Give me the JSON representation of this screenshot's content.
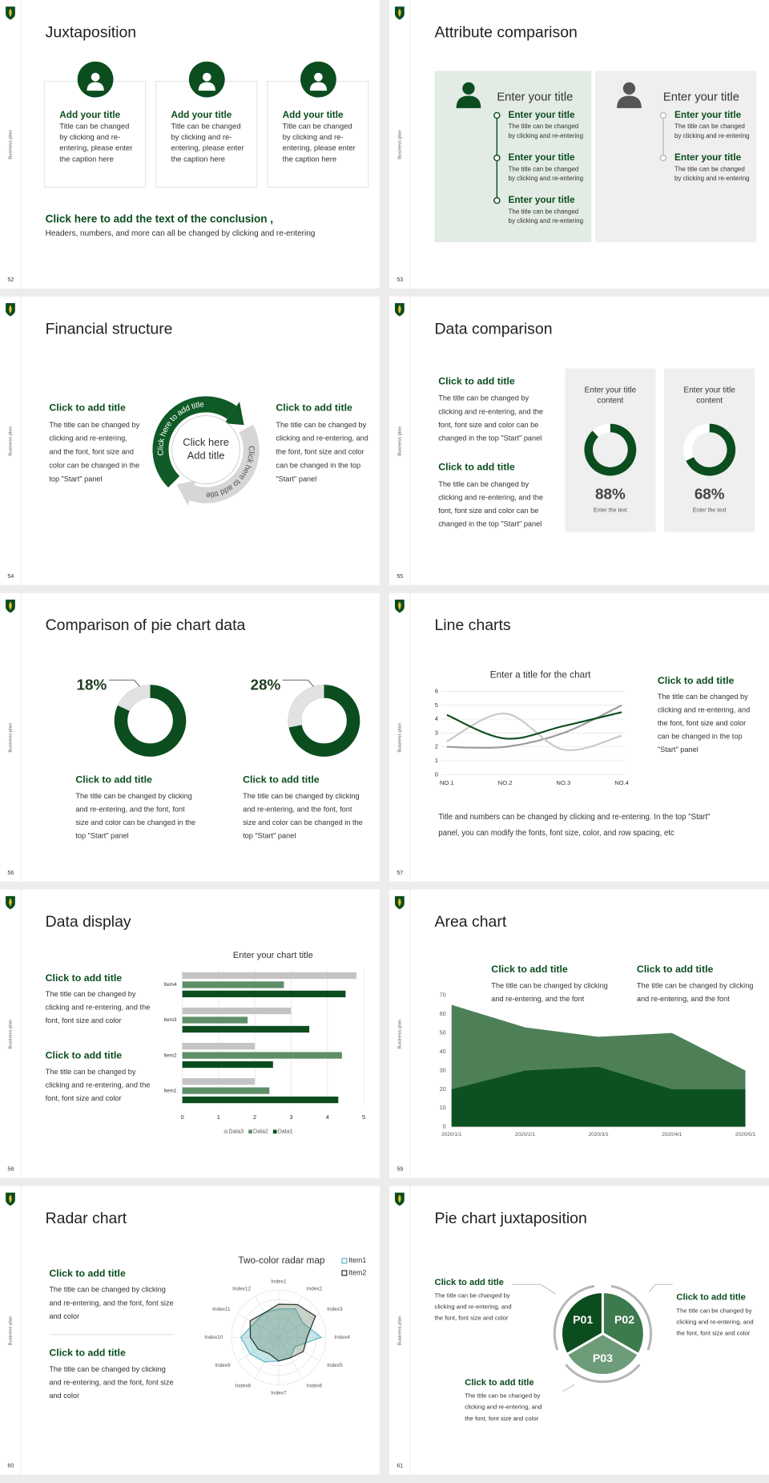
{
  "sidebar_label": "Business plan",
  "slides": [
    {
      "number": "52",
      "title": "Juxtaposition",
      "cards": [
        {
          "title": "Add your title",
          "text": [
            "Title can be changed",
            "by clicking and re-",
            "entering, please enter",
            "the caption here"
          ]
        },
        {
          "title": "Add your title",
          "text": [
            "Title can be changed",
            "by clicking and re-",
            "entering, please enter",
            "the caption here"
          ]
        },
        {
          "title": "Add your title",
          "text": [
            "Title can be changed",
            "by clicking and re-",
            "entering, please enter",
            "the caption here"
          ]
        }
      ],
      "conclusion_title": "Click here to add the text of the conclusion ,",
      "conclusion_text": "Headers, numbers, and more can all be changed by clicking and re-entering"
    },
    {
      "number": "53",
      "title": "Attribute comparison",
      "panels": [
        {
          "title": "Enter your title",
          "items": [
            {
              "title": "Enter your title",
              "text": [
                "The title can be changed",
                "by clicking and re-entering"
              ]
            },
            {
              "title": "Enter your title",
              "text": [
                "The title can be changed",
                "by clicking and re-entering"
              ]
            },
            {
              "title": "Enter your title",
              "text": [
                "The title can be changed",
                "by clicking and re-entering"
              ]
            }
          ]
        },
        {
          "title": "Enter your title",
          "items": [
            {
              "title": "Enter your title",
              "text": [
                "The title can be changed",
                "by clicking and re-entering"
              ]
            },
            {
              "title": "Enter your title",
              "text": [
                "The title can be changed",
                "by clicking and re-entering"
              ]
            }
          ]
        }
      ]
    },
    {
      "number": "54",
      "title": "Financial structure",
      "blocks": [
        {
          "title": "Click to add title",
          "text": [
            "The title can be changed by",
            "clicking and re-entering,",
            "and the font, font size and",
            "color can be changed in the",
            "top \"Start\" panel"
          ]
        },
        {
          "title": "Click to add title",
          "text": [
            "The title can be changed by",
            "clicking and re-entering, and",
            "the font, font size and color",
            "can be changed in the top",
            "\"Start\" panel"
          ]
        }
      ],
      "center": [
        "Click here",
        "Add title"
      ],
      "arc_labels": [
        "Click here to add title",
        "Click here to add title"
      ]
    },
    {
      "number": "55",
      "title": "Data comparison",
      "blocks": [
        {
          "title": "Click to add title",
          "text": [
            "The title can be changed by",
            "clicking and re-entering, and the",
            "font, font size and color can be",
            "changed in the top \"Start\" panel"
          ]
        },
        {
          "title": "Click to add title",
          "text": [
            "The title can be changed by",
            "clicking and re-entering, and the",
            "font, font size and color can be",
            "changed in the top \"Start\" panel"
          ]
        }
      ],
      "cards": [
        {
          "title": [
            "Enter your title",
            "content"
          ],
          "value": 88,
          "value_label": "88%",
          "caption": "Enter the text"
        },
        {
          "title": [
            "Enter your title",
            "content"
          ],
          "value": 68,
          "value_label": "68%",
          "caption": "Enter the text"
        }
      ]
    },
    {
      "number": "56",
      "title": "Comparison of pie chart data",
      "items": [
        {
          "value": 18,
          "value_label": "18%",
          "title": "Click to add title",
          "text": [
            "The title can be changed by clicking",
            "and re-entering, and the font, font",
            "size and color can be changed in the",
            "top \"Start\" panel"
          ]
        },
        {
          "value": 28,
          "value_label": "28%",
          "title": "Click to add title",
          "text": [
            "The title can be changed by clicking",
            "and re-entering, and the font, font",
            "size and color can be changed in the",
            "top \"Start\" panel"
          ]
        }
      ]
    },
    {
      "number": "57",
      "title": "Line charts",
      "chart": {
        "type": "line",
        "title": "Enter a title for the chart",
        "categories": [
          "NO.1",
          "NO.2",
          "NO.3",
          "NO.4"
        ],
        "series": [
          {
            "color": "#0b4d1e",
            "values": [
              4.3,
              2.6,
              3.5,
              4.5
            ]
          },
          {
            "color": "#c8c8c8",
            "values": [
              2.4,
              4.4,
              1.8,
              2.8
            ]
          },
          {
            "color": "#9a9a9a",
            "values": [
              2,
              2,
              3,
              5
            ]
          }
        ],
        "ylim": [
          0,
          6
        ],
        "yticks": [
          0,
          1,
          2,
          3,
          4,
          5,
          6
        ],
        "grid": true
      },
      "side": {
        "title": "Click to add title",
        "text": [
          "The title can be changed by",
          "clicking and re-entering, and",
          "the font, font size and color",
          "can be changed in the top",
          "\"Start\" panel"
        ]
      },
      "footer": [
        "Title and numbers can be changed by clicking and re-entering. In the top \"Start\"",
        "panel, you can modify the fonts, font size, color, and row spacing, etc"
      ]
    },
    {
      "number": "58",
      "title": "Data display",
      "chart": {
        "type": "bar",
        "orientation": "horizontal",
        "title": "Enter your chart title",
        "categories": [
          "Item1",
          "Item2",
          "Item3",
          "Item4"
        ],
        "series": [
          {
            "name": "Data1",
            "color": "#0b4d1e",
            "values": [
              4.3,
              2.5,
              3.5,
              4.5
            ]
          },
          {
            "name": "Data2",
            "color": "#5e8f68",
            "values": [
              2.4,
              4.4,
              1.8,
              2.8
            ]
          },
          {
            "name": "Data3",
            "color": "#c4c4c4",
            "values": [
              2,
              2,
              3,
              4.8
            ]
          }
        ],
        "xlim": [
          0,
          5
        ],
        "xticks": [
          0,
          1,
          2,
          3,
          4,
          5
        ],
        "grid": true
      },
      "blocks": [
        {
          "title": "Click to add title",
          "text": [
            "The title can be changed by",
            "clicking and re-entering, and the",
            "font, font size and color"
          ]
        },
        {
          "title": "Click to add title",
          "text": [
            "The title can be changed by",
            "clicking and re-entering, and the",
            "font, font size and color"
          ]
        }
      ]
    },
    {
      "number": "59",
      "title": "Area chart",
      "chart": {
        "type": "area",
        "categories": [
          "2020/1/1",
          "2020/2/1",
          "2020/3/1",
          "2020/4/1",
          "2020/5/1"
        ],
        "series": [
          {
            "color": "#4e8058",
            "values": [
              65,
              53,
              48,
              50,
              30
            ]
          },
          {
            "color": "#0d5122",
            "values": [
              20,
              30,
              32,
              20,
              20
            ]
          }
        ],
        "ylim": [
          0,
          70
        ],
        "yticks": [
          0,
          10,
          20,
          30,
          40,
          50,
          60,
          70
        ],
        "grid": false
      },
      "blocks": [
        {
          "title": "Click to add title",
          "text": [
            "The title can be changed by clicking",
            "and re-entering, and the font"
          ]
        },
        {
          "title": "Click to add title",
          "text": [
            "The title can be changed by clicking",
            "and re-entering, and the font"
          ]
        }
      ]
    },
    {
      "number": "60",
      "title": "Radar chart",
      "chart": {
        "type": "radar",
        "title": "Two-color radar map",
        "categories": [
          "Index1",
          "Index2",
          "Index3",
          "Index4",
          "Index5",
          "Index6",
          "Index7",
          "Index8",
          "Index9",
          "Index10",
          "Index11",
          "Index12"
        ],
        "rlim": [
          0,
          5
        ],
        "series": [
          {
            "name": "Item1",
            "color": "#5bb6c4",
            "values": [
              3,
              3.5,
              3,
              4.5,
              2,
              2.5,
              2.5,
              3,
              3.5,
              4,
              3,
              3
            ]
          },
          {
            "name": "Item2",
            "color": "#1e2e22",
            "values": [
              3.5,
              4,
              4.5,
              3,
              3,
              2.5,
              2.5,
              2,
              2.5,
              3,
              3.5,
              3
            ]
          }
        ]
      },
      "blocks": [
        {
          "title": "Click to add title",
          "text": [
            "The title can be changed by clicking",
            "and re-entering, and the font, font size",
            "and color"
          ]
        },
        {
          "title": "Click to add title",
          "text": [
            "The title can be changed by clicking",
            "and re-entering, and the font, font size",
            "and color"
          ]
        }
      ]
    },
    {
      "number": "61",
      "title": "Pie chart juxtaposition",
      "segments": [
        "P01",
        "P02",
        "P03"
      ],
      "blocks": [
        {
          "title": "Click to add title",
          "text": [
            "The title can be changed by",
            "clicking and re-entering, and",
            "the font, font size and color"
          ]
        },
        {
          "title": "Click to add title",
          "text": [
            "The title can be changed by",
            "clicking and re-entering, and",
            "the font, font size and color"
          ]
        },
        {
          "title": "Click to add title",
          "text": [
            "The title can be changed by",
            "clicking and re-entering, and",
            "the font, font size and color"
          ]
        }
      ]
    }
  ]
}
